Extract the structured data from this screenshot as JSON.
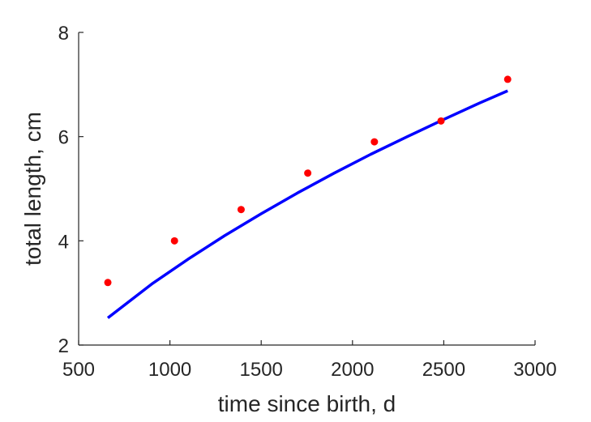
{
  "chart_data": {
    "type": "scatter",
    "title": "",
    "xlabel": "time since birth, d",
    "ylabel": "total length, cm",
    "xlim": [
      500,
      3000
    ],
    "ylim": [
      2,
      8
    ],
    "xticks": [
      500,
      1000,
      1500,
      2000,
      2500,
      3000
    ],
    "yticks": [
      2,
      4,
      6,
      8
    ],
    "xtick_labels": [
      "500",
      "1000",
      "1500",
      "2000",
      "2500",
      "3000"
    ],
    "ytick_labels": [
      "2",
      "4",
      "6",
      "8"
    ],
    "grid": false,
    "series": [
      {
        "kind": "points",
        "color": "#ff0000",
        "x": [
          660,
          1025,
          1390,
          1755,
          2120,
          2485,
          2850
        ],
        "y": [
          3.2,
          4.0,
          4.6,
          5.3,
          5.9,
          6.3,
          7.1
        ]
      },
      {
        "kind": "line",
        "color": "#0000ff",
        "x": [
          660,
          900,
          1100,
          1300,
          1500,
          1700,
          1900,
          2100,
          2300,
          2500,
          2700,
          2850
        ],
        "y": [
          2.52,
          3.17,
          3.65,
          4.1,
          4.52,
          4.92,
          5.3,
          5.66,
          6.0,
          6.33,
          6.65,
          6.88
        ]
      }
    ]
  }
}
